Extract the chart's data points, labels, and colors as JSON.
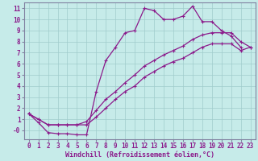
{
  "xlabel": "Windchill (Refroidissement éolien,°C)",
  "bg_color": "#c6ebe9",
  "line_color": "#8b1a8b",
  "grid_color": "#a0cccc",
  "axis_color": "#8080a0",
  "tick_color": "#8b1a8b",
  "xlim": [
    -0.5,
    23.5
  ],
  "ylim": [
    -0.8,
    11.5
  ],
  "xticks": [
    0,
    1,
    2,
    3,
    4,
    5,
    6,
    7,
    8,
    9,
    10,
    11,
    12,
    13,
    14,
    15,
    16,
    17,
    18,
    19,
    20,
    21,
    22,
    23
  ],
  "yticks": [
    0,
    1,
    2,
    3,
    4,
    5,
    6,
    7,
    8,
    9,
    10,
    11
  ],
  "ytick_labels": [
    "-0",
    "1",
    "2",
    "3",
    "4",
    "5",
    "6",
    "7",
    "8",
    "9",
    "10",
    "11"
  ],
  "line1_x": [
    0,
    1,
    2,
    3,
    4,
    5,
    6,
    7,
    8,
    9,
    10,
    11,
    12,
    13,
    14,
    15,
    16,
    17,
    18,
    19,
    20,
    21,
    22
  ],
  "line1_y": [
    1.5,
    0.7,
    -0.2,
    -0.3,
    -0.3,
    -0.4,
    -0.4,
    3.5,
    6.3,
    7.5,
    8.8,
    9.0,
    11.0,
    10.8,
    10.0,
    10.0,
    10.3,
    11.2,
    9.8,
    9.8,
    9.0,
    8.5,
    7.5
  ],
  "line2_x": [
    0,
    1,
    2,
    3,
    4,
    5,
    6,
    7,
    8,
    9,
    10,
    11,
    12,
    13,
    14,
    15,
    16,
    17,
    18,
    19,
    20,
    21,
    22,
    23
  ],
  "line2_y": [
    1.5,
    1.0,
    0.5,
    0.5,
    0.5,
    0.5,
    0.8,
    1.8,
    2.8,
    3.5,
    4.3,
    5.0,
    5.8,
    6.3,
    6.8,
    7.2,
    7.6,
    8.2,
    8.6,
    8.8,
    8.8,
    8.8,
    8.0,
    7.5
  ],
  "line3_x": [
    0,
    1,
    2,
    3,
    4,
    5,
    6,
    7,
    8,
    9,
    10,
    11,
    12,
    13,
    14,
    15,
    16,
    17,
    18,
    19,
    20,
    21,
    22,
    23
  ],
  "line3_y": [
    1.5,
    1.0,
    0.5,
    0.5,
    0.5,
    0.5,
    0.5,
    1.2,
    2.0,
    2.8,
    3.5,
    4.0,
    4.8,
    5.3,
    5.8,
    6.2,
    6.5,
    7.0,
    7.5,
    7.8,
    7.8,
    7.8,
    7.2,
    7.5
  ],
  "marker": "+",
  "markersize": 3,
  "linewidth": 0.9,
  "fontsize_tick": 5.5,
  "fontsize_label": 6.0
}
